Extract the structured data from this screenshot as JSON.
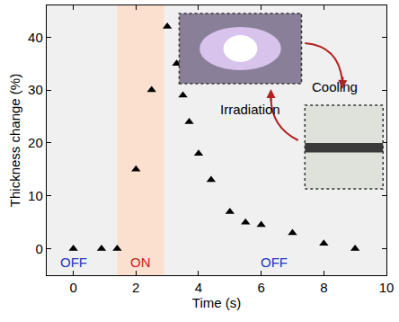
{
  "chart_data": {
    "type": "scatter",
    "x_label": "Time (s)",
    "y_label": "Thickness change (%)",
    "x": [
      0,
      0.9,
      1.4,
      2,
      2.5,
      3,
      3.3,
      3.5,
      3.7,
      4,
      4.4,
      5,
      5.5,
      6,
      7,
      8,
      9
    ],
    "values": [
      0,
      0,
      0,
      15,
      30,
      42,
      35,
      29,
      24,
      18,
      13,
      7,
      5,
      4.5,
      3,
      1,
      0
    ],
    "color": "#000000",
    "marker": "triangle-up",
    "xlim": [
      -0.85,
      10
    ],
    "xticks": [
      0,
      2,
      4,
      6,
      8,
      10
    ],
    "ylim": [
      -5,
      46
    ],
    "yticks": [
      0,
      10,
      20,
      30,
      40
    ],
    "grid": false,
    "on_region": [
      1.4,
      2.9
    ],
    "annotations": [
      {
        "text": "OFF",
        "x": 0,
        "y": -2.6,
        "color": "#2233bb"
      },
      {
        "text": "ON",
        "x": 2.15,
        "y": -2.6,
        "color": "#cc2222"
      },
      {
        "text": "OFF",
        "x": 6.4,
        "y": -2.6,
        "color": "#2233bb"
      },
      {
        "text": "Irradiation",
        "x": 5.65,
        "y": 26.4,
        "color": "#000000"
      },
      {
        "text": "Cooling",
        "x": 8.35,
        "y": 30.6,
        "color": "#000000"
      }
    ]
  }
}
